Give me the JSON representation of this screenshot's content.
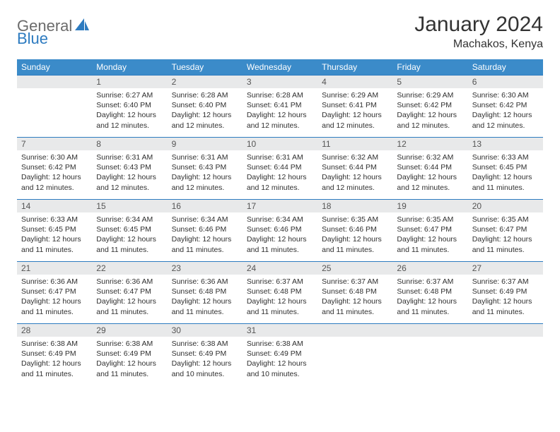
{
  "brand": {
    "text1": "General",
    "text2": "Blue"
  },
  "header": {
    "title": "January 2024",
    "location": "Machakos, Kenya"
  },
  "colors": {
    "header_bg": "#3b8bc9",
    "header_text": "#ffffff",
    "row_border": "#2d7bc0",
    "daynum_bg": "#e8e9ea",
    "body_text": "#333333",
    "logo_gray": "#6b6b6b",
    "logo_blue": "#2d7bc0"
  },
  "dayNames": [
    "Sunday",
    "Monday",
    "Tuesday",
    "Wednesday",
    "Thursday",
    "Friday",
    "Saturday"
  ],
  "weeks": [
    [
      {
        "day": "",
        "sunrise": "",
        "sunset": "",
        "daylight": ""
      },
      {
        "day": "1",
        "sunrise": "Sunrise: 6:27 AM",
        "sunset": "Sunset: 6:40 PM",
        "daylight": "Daylight: 12 hours and 12 minutes."
      },
      {
        "day": "2",
        "sunrise": "Sunrise: 6:28 AM",
        "sunset": "Sunset: 6:40 PM",
        "daylight": "Daylight: 12 hours and 12 minutes."
      },
      {
        "day": "3",
        "sunrise": "Sunrise: 6:28 AM",
        "sunset": "Sunset: 6:41 PM",
        "daylight": "Daylight: 12 hours and 12 minutes."
      },
      {
        "day": "4",
        "sunrise": "Sunrise: 6:29 AM",
        "sunset": "Sunset: 6:41 PM",
        "daylight": "Daylight: 12 hours and 12 minutes."
      },
      {
        "day": "5",
        "sunrise": "Sunrise: 6:29 AM",
        "sunset": "Sunset: 6:42 PM",
        "daylight": "Daylight: 12 hours and 12 minutes."
      },
      {
        "day": "6",
        "sunrise": "Sunrise: 6:30 AM",
        "sunset": "Sunset: 6:42 PM",
        "daylight": "Daylight: 12 hours and 12 minutes."
      }
    ],
    [
      {
        "day": "7",
        "sunrise": "Sunrise: 6:30 AM",
        "sunset": "Sunset: 6:42 PM",
        "daylight": "Daylight: 12 hours and 12 minutes."
      },
      {
        "day": "8",
        "sunrise": "Sunrise: 6:31 AM",
        "sunset": "Sunset: 6:43 PM",
        "daylight": "Daylight: 12 hours and 12 minutes."
      },
      {
        "day": "9",
        "sunrise": "Sunrise: 6:31 AM",
        "sunset": "Sunset: 6:43 PM",
        "daylight": "Daylight: 12 hours and 12 minutes."
      },
      {
        "day": "10",
        "sunrise": "Sunrise: 6:31 AM",
        "sunset": "Sunset: 6:44 PM",
        "daylight": "Daylight: 12 hours and 12 minutes."
      },
      {
        "day": "11",
        "sunrise": "Sunrise: 6:32 AM",
        "sunset": "Sunset: 6:44 PM",
        "daylight": "Daylight: 12 hours and 12 minutes."
      },
      {
        "day": "12",
        "sunrise": "Sunrise: 6:32 AM",
        "sunset": "Sunset: 6:44 PM",
        "daylight": "Daylight: 12 hours and 12 minutes."
      },
      {
        "day": "13",
        "sunrise": "Sunrise: 6:33 AM",
        "sunset": "Sunset: 6:45 PM",
        "daylight": "Daylight: 12 hours and 11 minutes."
      }
    ],
    [
      {
        "day": "14",
        "sunrise": "Sunrise: 6:33 AM",
        "sunset": "Sunset: 6:45 PM",
        "daylight": "Daylight: 12 hours and 11 minutes."
      },
      {
        "day": "15",
        "sunrise": "Sunrise: 6:34 AM",
        "sunset": "Sunset: 6:45 PM",
        "daylight": "Daylight: 12 hours and 11 minutes."
      },
      {
        "day": "16",
        "sunrise": "Sunrise: 6:34 AM",
        "sunset": "Sunset: 6:46 PM",
        "daylight": "Daylight: 12 hours and 11 minutes."
      },
      {
        "day": "17",
        "sunrise": "Sunrise: 6:34 AM",
        "sunset": "Sunset: 6:46 PM",
        "daylight": "Daylight: 12 hours and 11 minutes."
      },
      {
        "day": "18",
        "sunrise": "Sunrise: 6:35 AM",
        "sunset": "Sunset: 6:46 PM",
        "daylight": "Daylight: 12 hours and 11 minutes."
      },
      {
        "day": "19",
        "sunrise": "Sunrise: 6:35 AM",
        "sunset": "Sunset: 6:47 PM",
        "daylight": "Daylight: 12 hours and 11 minutes."
      },
      {
        "day": "20",
        "sunrise": "Sunrise: 6:35 AM",
        "sunset": "Sunset: 6:47 PM",
        "daylight": "Daylight: 12 hours and 11 minutes."
      }
    ],
    [
      {
        "day": "21",
        "sunrise": "Sunrise: 6:36 AM",
        "sunset": "Sunset: 6:47 PM",
        "daylight": "Daylight: 12 hours and 11 minutes."
      },
      {
        "day": "22",
        "sunrise": "Sunrise: 6:36 AM",
        "sunset": "Sunset: 6:47 PM",
        "daylight": "Daylight: 12 hours and 11 minutes."
      },
      {
        "day": "23",
        "sunrise": "Sunrise: 6:36 AM",
        "sunset": "Sunset: 6:48 PM",
        "daylight": "Daylight: 12 hours and 11 minutes."
      },
      {
        "day": "24",
        "sunrise": "Sunrise: 6:37 AM",
        "sunset": "Sunset: 6:48 PM",
        "daylight": "Daylight: 12 hours and 11 minutes."
      },
      {
        "day": "25",
        "sunrise": "Sunrise: 6:37 AM",
        "sunset": "Sunset: 6:48 PM",
        "daylight": "Daylight: 12 hours and 11 minutes."
      },
      {
        "day": "26",
        "sunrise": "Sunrise: 6:37 AM",
        "sunset": "Sunset: 6:48 PM",
        "daylight": "Daylight: 12 hours and 11 minutes."
      },
      {
        "day": "27",
        "sunrise": "Sunrise: 6:37 AM",
        "sunset": "Sunset: 6:49 PM",
        "daylight": "Daylight: 12 hours and 11 minutes."
      }
    ],
    [
      {
        "day": "28",
        "sunrise": "Sunrise: 6:38 AM",
        "sunset": "Sunset: 6:49 PM",
        "daylight": "Daylight: 12 hours and 11 minutes."
      },
      {
        "day": "29",
        "sunrise": "Sunrise: 6:38 AM",
        "sunset": "Sunset: 6:49 PM",
        "daylight": "Daylight: 12 hours and 11 minutes."
      },
      {
        "day": "30",
        "sunrise": "Sunrise: 6:38 AM",
        "sunset": "Sunset: 6:49 PM",
        "daylight": "Daylight: 12 hours and 10 minutes."
      },
      {
        "day": "31",
        "sunrise": "Sunrise: 6:38 AM",
        "sunset": "Sunset: 6:49 PM",
        "daylight": "Daylight: 12 hours and 10 minutes."
      },
      {
        "day": "",
        "sunrise": "",
        "sunset": "",
        "daylight": ""
      },
      {
        "day": "",
        "sunrise": "",
        "sunset": "",
        "daylight": ""
      },
      {
        "day": "",
        "sunrise": "",
        "sunset": "",
        "daylight": ""
      }
    ]
  ]
}
